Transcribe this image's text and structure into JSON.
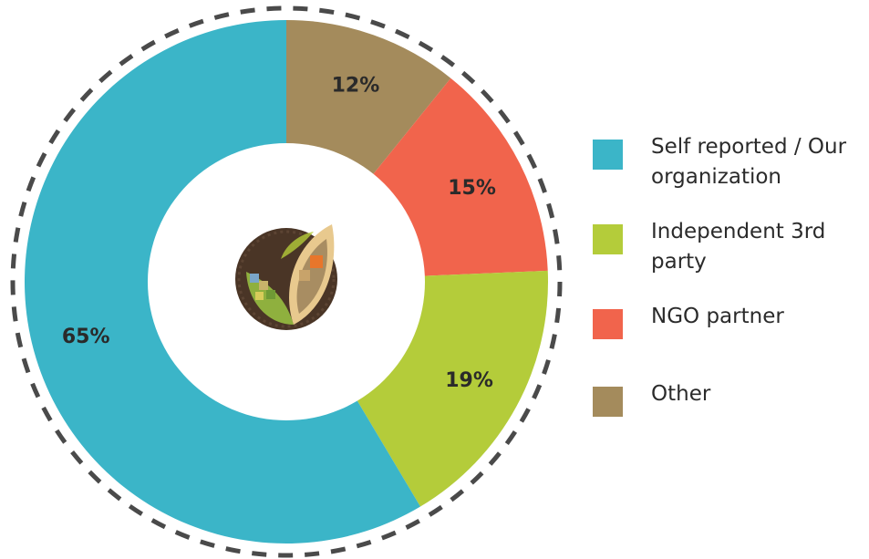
{
  "chart_data": {
    "type": "pie",
    "variant": "donut",
    "title": "",
    "slices": [
      {
        "label": "Other",
        "value": 12,
        "text": "12%",
        "color": "#a48b5c"
      },
      {
        "label": "NGO partner",
        "value": 15,
        "text": "15%",
        "color": "#f1644c"
      },
      {
        "label": "Independent 3rd party",
        "value": 19,
        "text": "19%",
        "color": "#b4cc3a"
      },
      {
        "label": "Self reported / Our organization",
        "value": 65,
        "text": "65%",
        "color": "#3bb5c8"
      }
    ],
    "legend": {
      "placement": "right",
      "items": [
        {
          "label": "Self reported / Our organization",
          "color": "#3bb5c8"
        },
        {
          "label": "Independent 3rd party",
          "color": "#b4cc3a"
        },
        {
          "label": "NGO partner",
          "color": "#f1644c"
        },
        {
          "label": "Other",
          "color": "#a48b5c"
        }
      ]
    },
    "center_logo": "leaf-logo-icon"
  }
}
